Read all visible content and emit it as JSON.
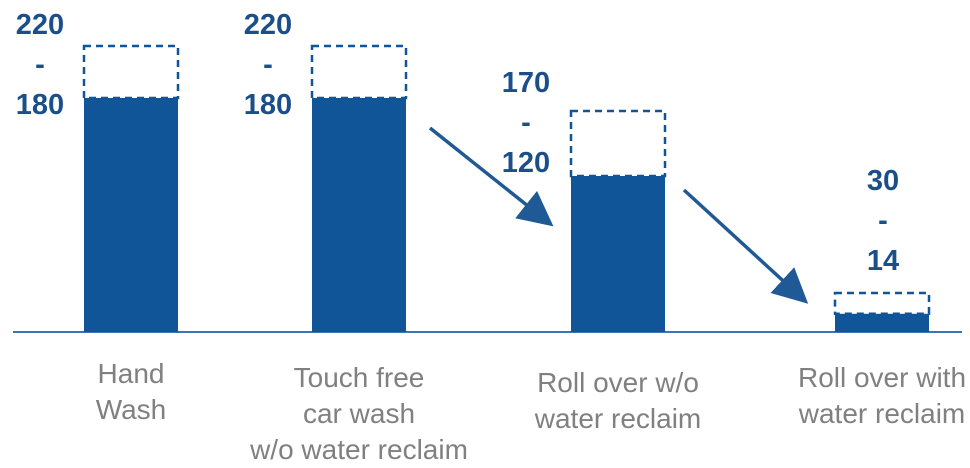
{
  "colors": {
    "bar": "#0f5597",
    "label": "#1a4f8a",
    "category": "#808080",
    "baseline": "#3d74b5",
    "arrow": "#1f5a96"
  },
  "chart_data": {
    "type": "bar",
    "categories": [
      [
        "Hand",
        "Wash"
      ],
      [
        "Touch free",
        "car wash",
        "w/o water reclaim"
      ],
      [
        "Roll over w/o",
        "water reclaim"
      ],
      [
        "Roll over with",
        "water reclaim"
      ]
    ],
    "series": [
      {
        "values": [
          180,
          180,
          120,
          14
        ]
      }
    ],
    "ranges": [
      {
        "high": "220",
        "separator": "-",
        "low": "180"
      },
      {
        "high": "220",
        "separator": "-",
        "low": "180"
      },
      {
        "high": "170",
        "separator": "-",
        "low": "120"
      },
      {
        "high": "30",
        "separator": "-",
        "low": "14"
      }
    ],
    "range_high_values": [
      220,
      220,
      170,
      30
    ],
    "range_low_values": [
      180,
      180,
      120,
      14
    ],
    "range_display": "solid bar = low value, dashed box extends to high value",
    "arrows": [
      {
        "from_category": 1,
        "to_category": 2
      },
      {
        "from_category": 2,
        "to_category": 3
      }
    ],
    "ylim": [
      0,
      220
    ],
    "grid": false,
    "legend": "none",
    "title": "",
    "xlabel": "",
    "ylabel": ""
  }
}
